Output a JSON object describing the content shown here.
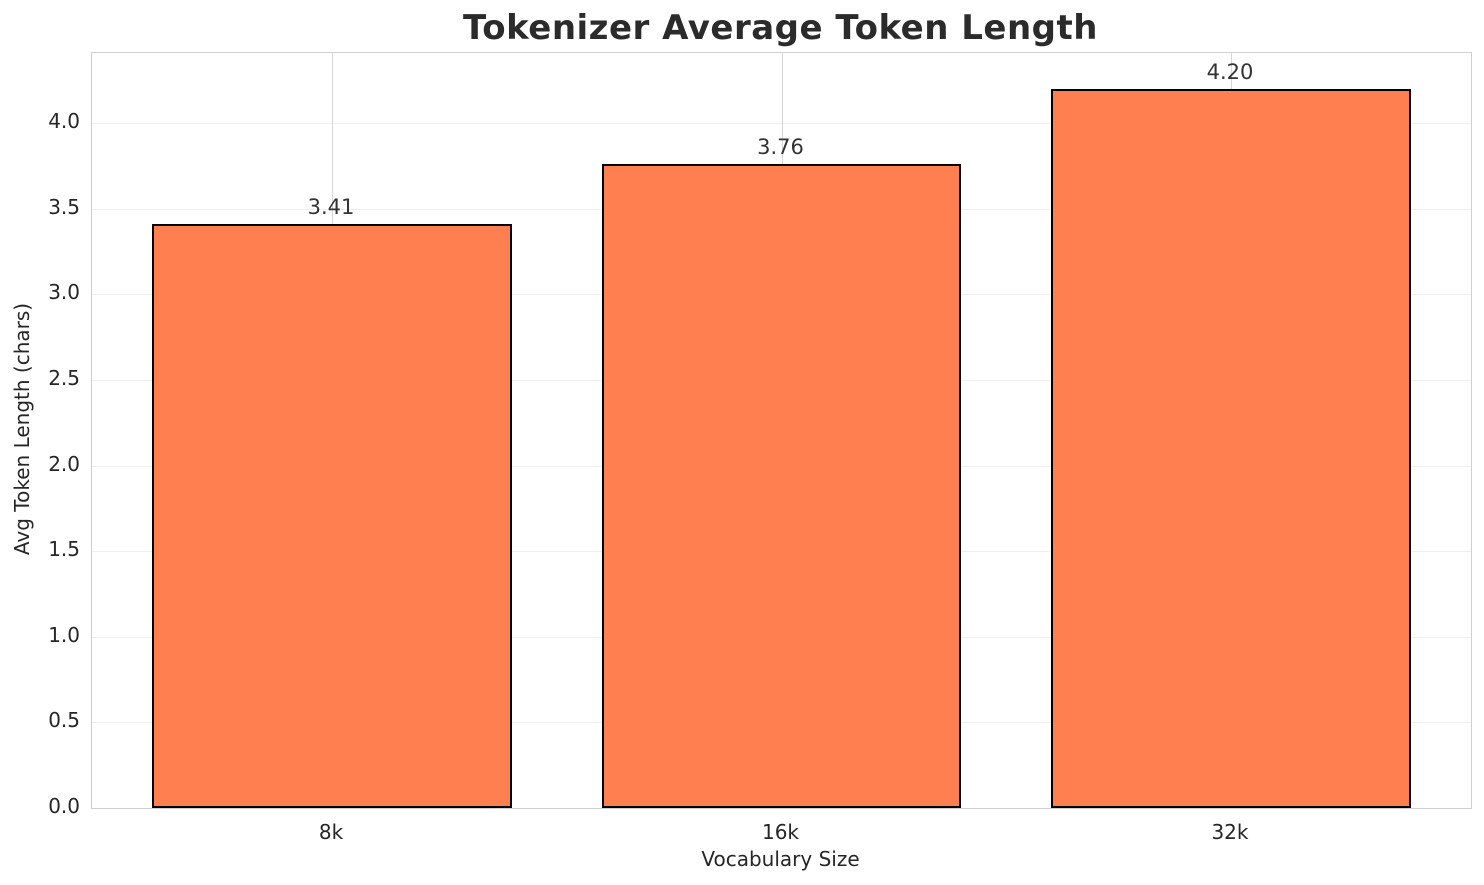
{
  "chart_data": {
    "type": "bar",
    "title": "Tokenizer Average Token Length",
    "xlabel": "Vocabulary Size",
    "ylabel": "Avg Token Length (chars)",
    "categories": [
      "8k",
      "16k",
      "32k"
    ],
    "values": [
      3.41,
      3.76,
      4.2
    ],
    "value_labels": [
      "3.41",
      "3.76",
      "4.20"
    ],
    "yticks": [
      0.0,
      0.5,
      1.0,
      1.5,
      2.0,
      2.5,
      3.0,
      3.5,
      4.0
    ],
    "ytick_labels": [
      "0.0",
      "0.5",
      "1.0",
      "1.5",
      "2.0",
      "2.5",
      "3.0",
      "3.5",
      "4.0"
    ],
    "ylim": [
      0,
      4.41
    ],
    "grid": true,
    "legend_position": "none",
    "bar_color": "#FF7F50",
    "bar_edge_color": "#000000",
    "grid_color_horizontal": "#efefef",
    "grid_color_vertical": "#d6d6d6",
    "spine_color": "#d0d0d0",
    "text_color": "#262626",
    "background_color": "#ffffff"
  }
}
